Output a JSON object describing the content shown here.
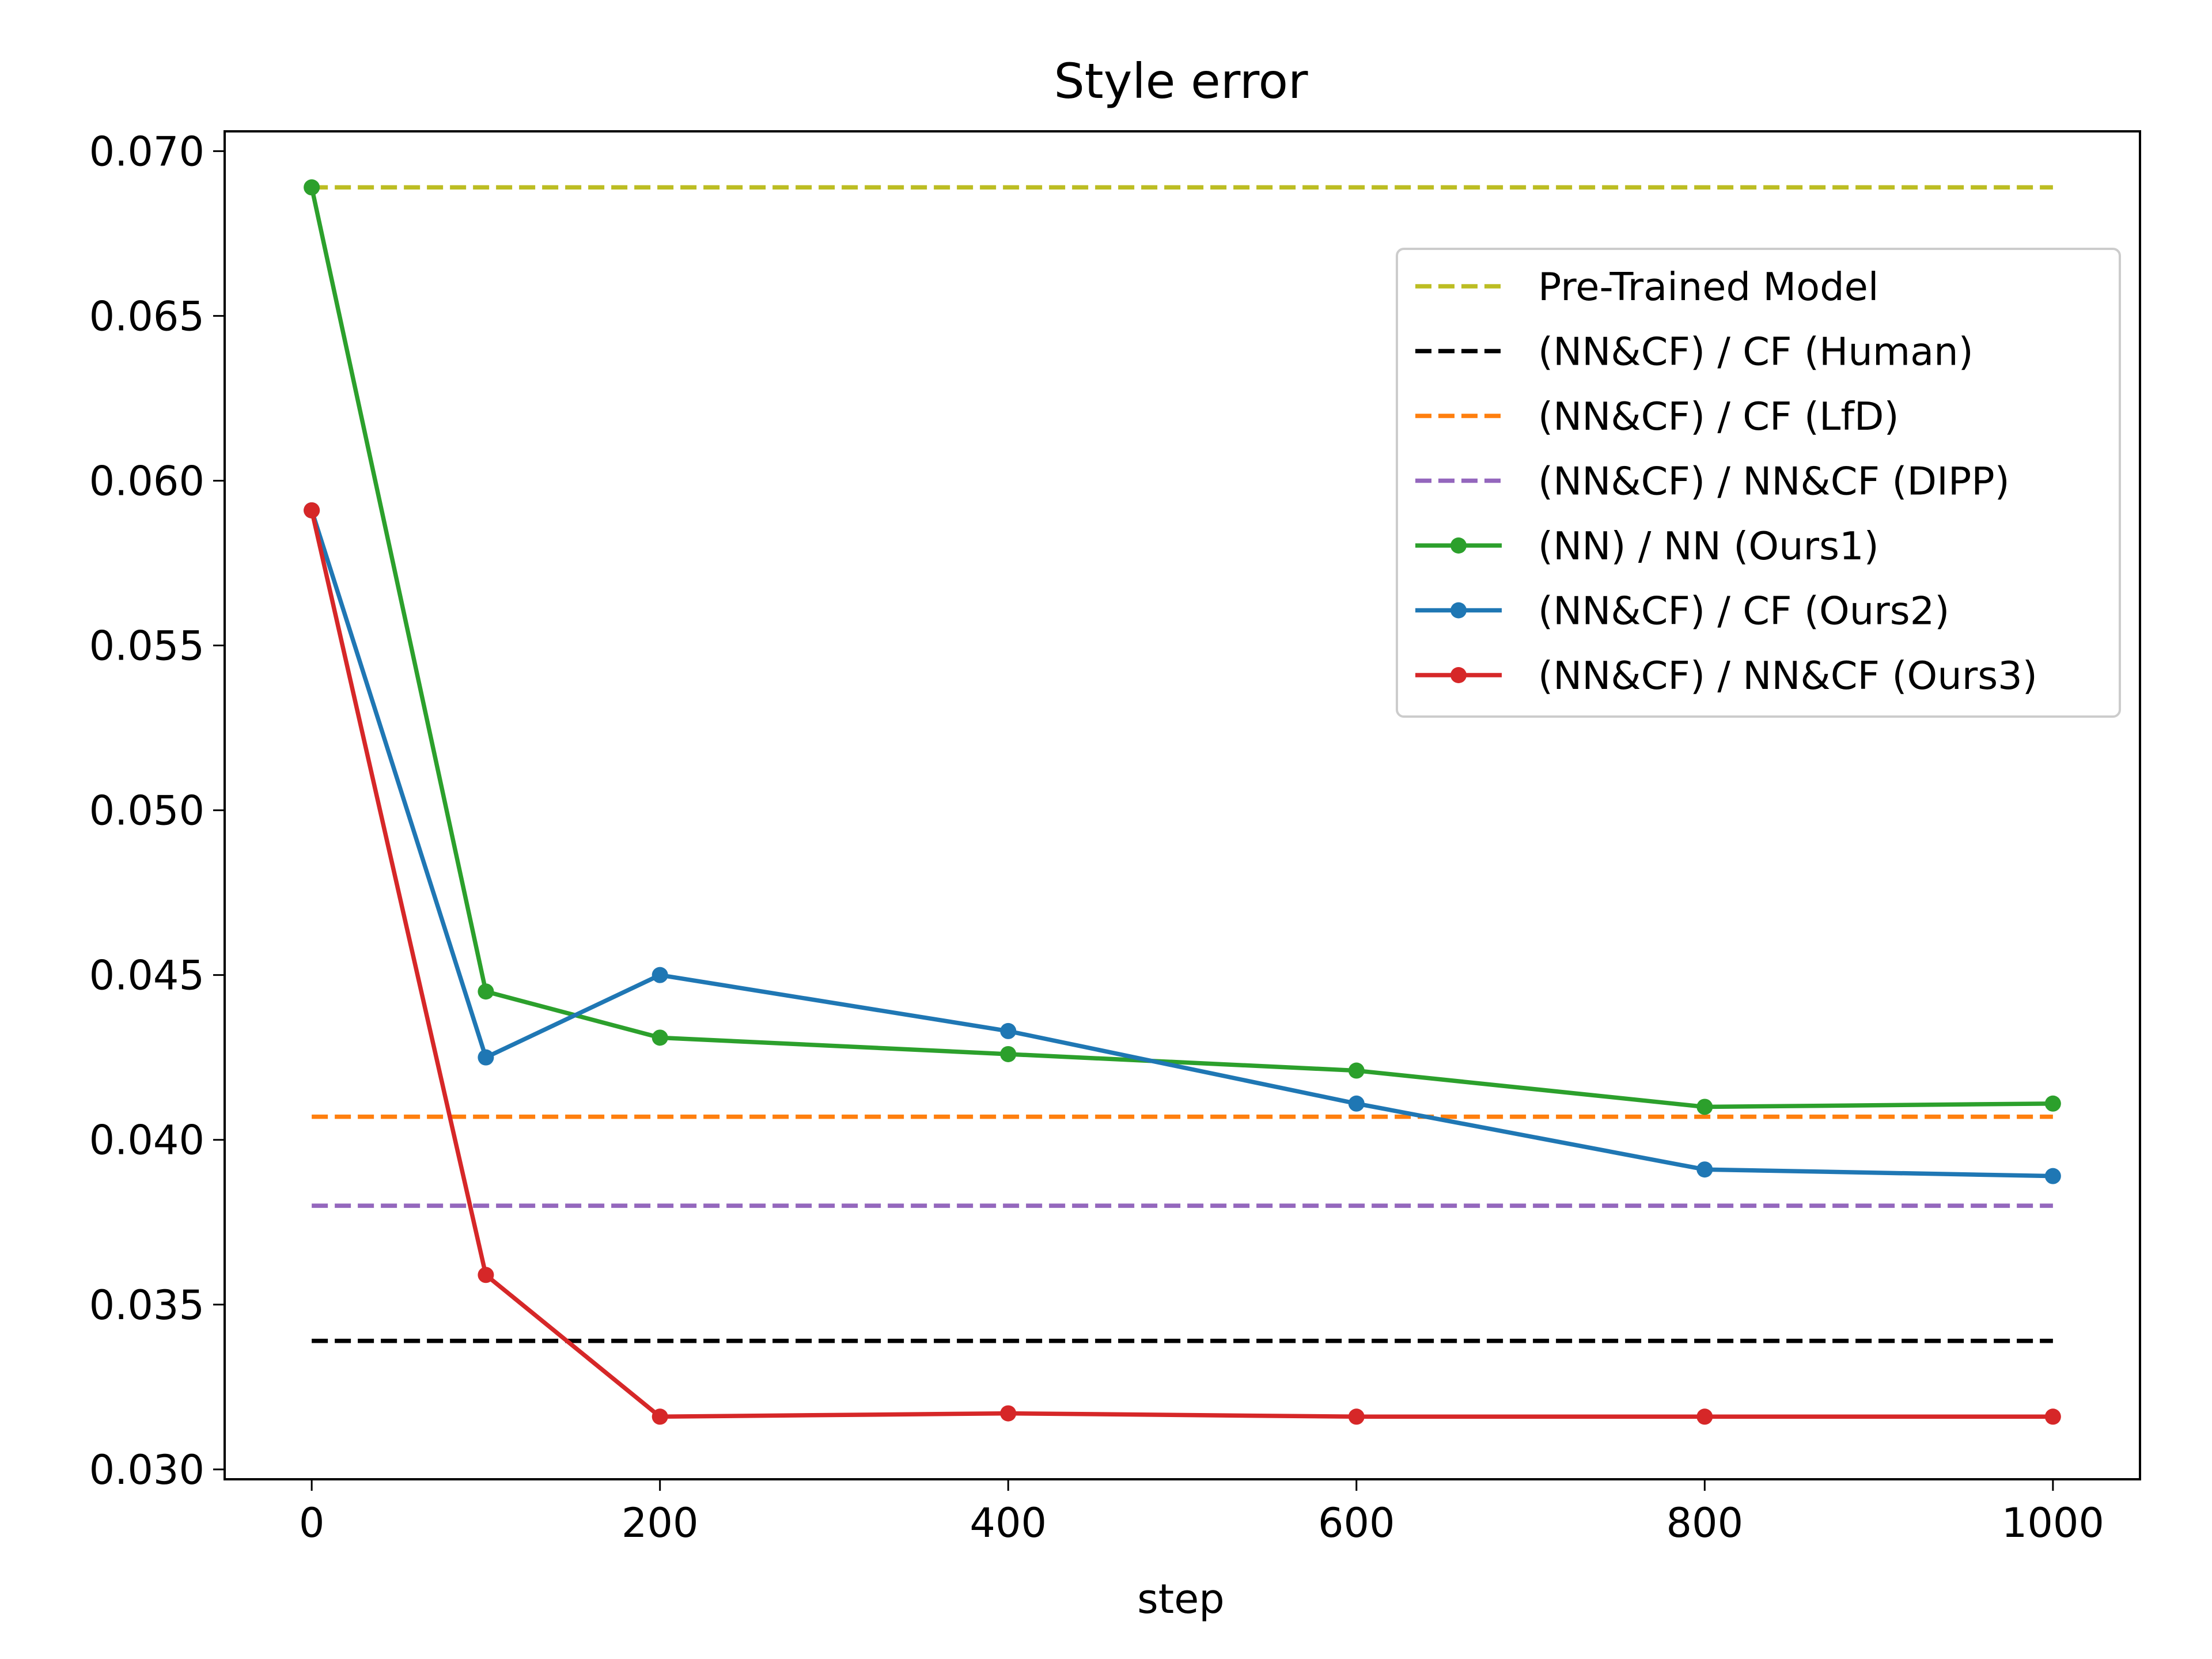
{
  "chart_data": {
    "type": "line",
    "title": "Style error",
    "xlabel": "step",
    "ylabel": "",
    "xlim": [
      -50,
      1050
    ],
    "ylim": [
      0.0297,
      0.0706
    ],
    "xticks": [
      0,
      200,
      400,
      600,
      800,
      1000
    ],
    "xtick_labels": [
      "0",
      "200",
      "400",
      "600",
      "800",
      "1000"
    ],
    "yticks": [
      0.03,
      0.035,
      0.04,
      0.045,
      0.05,
      0.055,
      0.06,
      0.065,
      0.07
    ],
    "ytick_labels": [
      "0.030",
      "0.035",
      "0.040",
      "0.045",
      "0.050",
      "0.055",
      "0.060",
      "0.065",
      "0.070"
    ],
    "grid": false,
    "legend_position": "upper right",
    "series": [
      {
        "name": "Pre-Trained Model",
        "style": "dashed",
        "color": "#bcbd22",
        "x": [
          0,
          1000
        ],
        "y": [
          0.0689,
          0.0689
        ]
      },
      {
        "name": "(NN&CF) / CF (Human)",
        "style": "dashed",
        "color": "#000000",
        "x": [
          0,
          1000
        ],
        "y": [
          0.0339,
          0.0339
        ]
      },
      {
        "name": "(NN&CF) / CF (LfD)",
        "style": "dashed",
        "color": "#ff7f0e",
        "x": [
          0,
          1000
        ],
        "y": [
          0.0407,
          0.0407
        ]
      },
      {
        "name": "(NN&CF) / NN&CF (DIPP)",
        "style": "dashed",
        "color": "#9467bd",
        "x": [
          0,
          1000
        ],
        "y": [
          0.038,
          0.038
        ]
      },
      {
        "name": "(NN) / NN (Ours1)",
        "style": "solid-marker",
        "color": "#2ca02c",
        "x": [
          0,
          100,
          200,
          400,
          600,
          800,
          1000
        ],
        "y": [
          0.0689,
          0.0445,
          0.0431,
          0.0426,
          0.0421,
          0.041,
          0.0411
        ]
      },
      {
        "name": "(NN&CF) / CF (Ours2)",
        "style": "solid-marker",
        "color": "#1f77b4",
        "x": [
          0,
          100,
          200,
          400,
          600,
          800,
          1000
        ],
        "y": [
          0.0591,
          0.0425,
          0.045,
          0.0433,
          0.0411,
          0.0391,
          0.0389
        ]
      },
      {
        "name": "(NN&CF) / NN&CF (Ours3)",
        "style": "solid-marker",
        "color": "#d62728",
        "x": [
          0,
          100,
          200,
          400,
          600,
          800,
          1000
        ],
        "y": [
          0.0591,
          0.0359,
          0.0316,
          0.0317,
          0.0316,
          0.0316,
          0.0316
        ]
      }
    ]
  }
}
